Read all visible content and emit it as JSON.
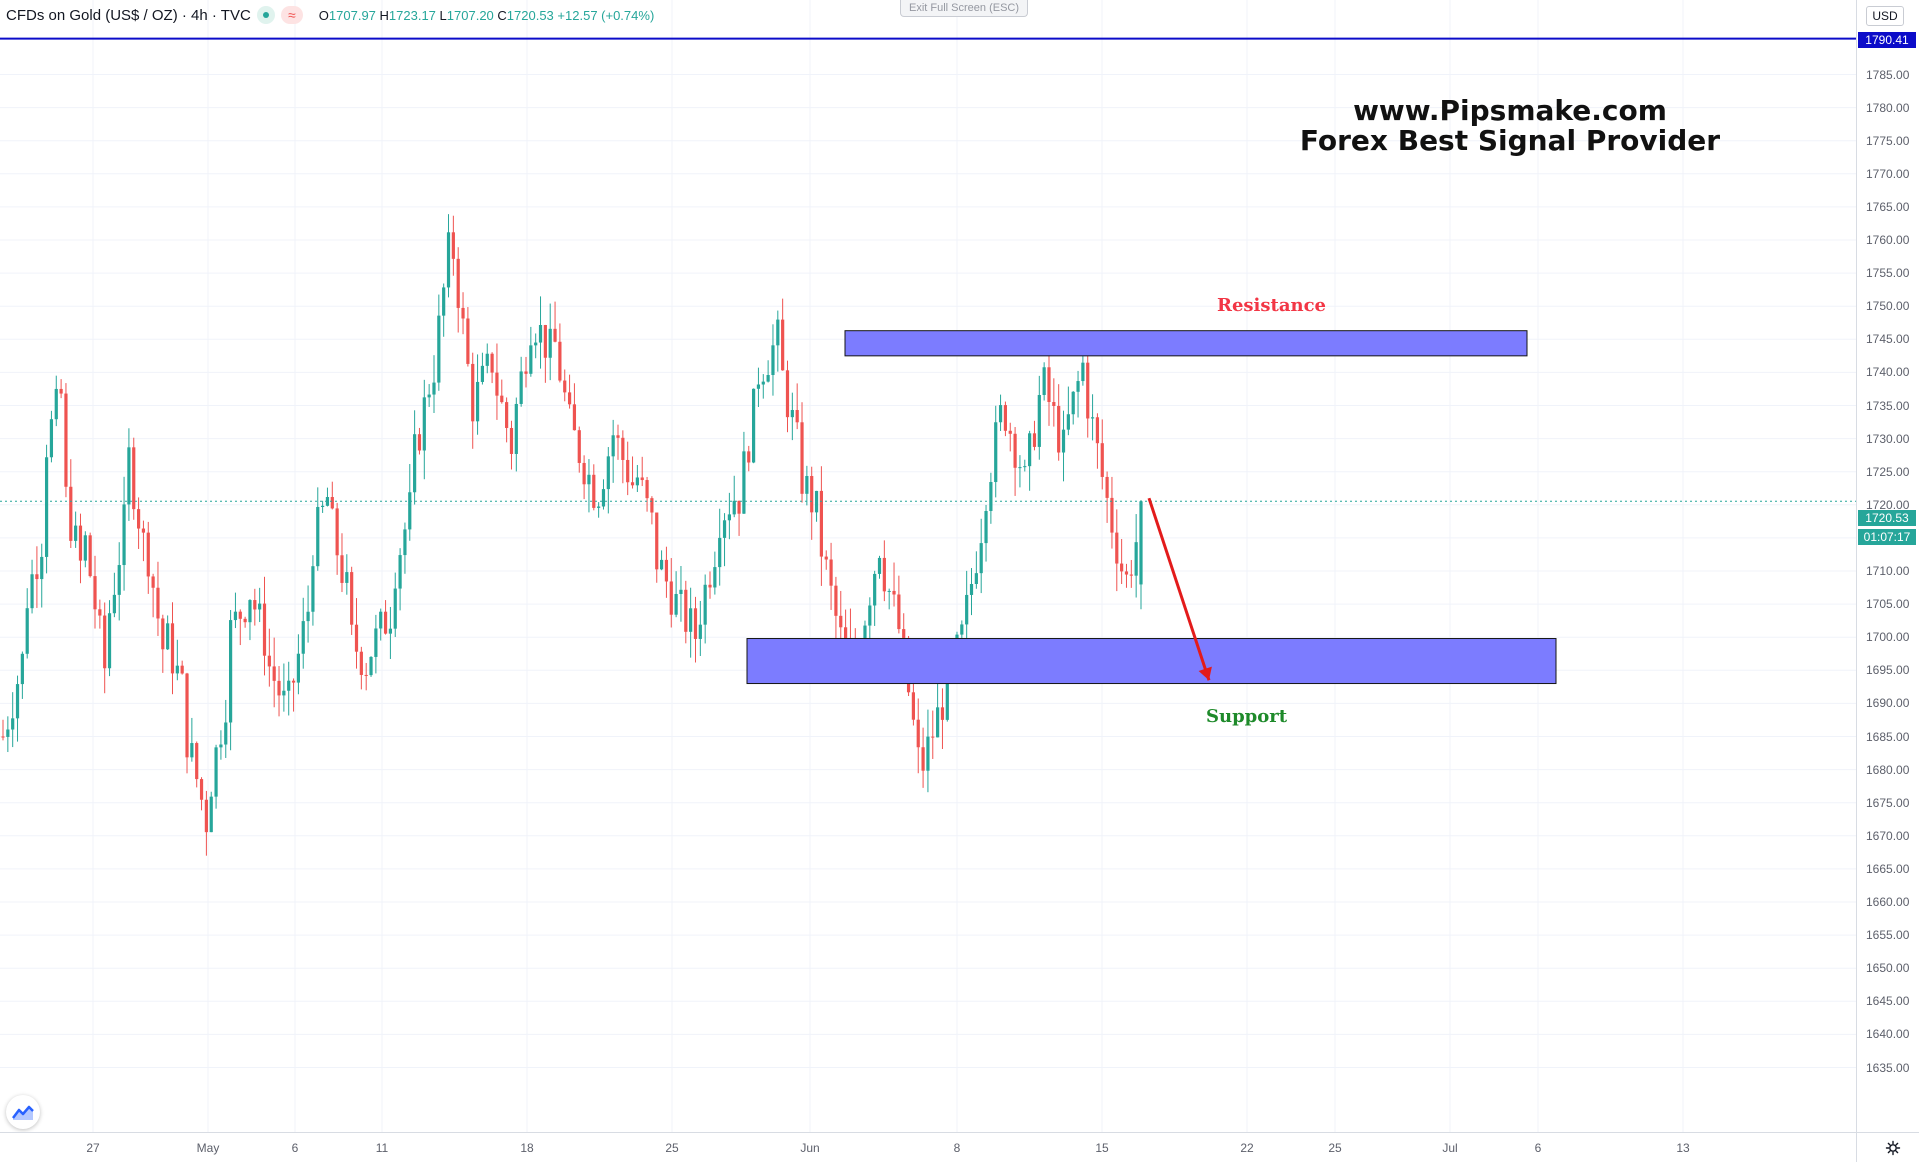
{
  "legend": {
    "symbol": "CFDs on Gold (US$ / OZ) · 4h · TVC",
    "open_label": "O",
    "open": "1707.97",
    "high_label": "H",
    "high": "1723.17",
    "low_label": "L",
    "low": "1707.20",
    "close_label": "C",
    "close": "1720.53",
    "change": "+12.57 (+0.74%)"
  },
  "exit_fullscreen": "Exit Full Screen (ESC)",
  "watermark": {
    "line1": "www.Pipsmake.com",
    "line2": "Forex Best Signal Provider"
  },
  "annotations": {
    "resistance": "Resistance",
    "support": "Support",
    "resistance_color": "#f23645",
    "support_color": "#1e8a2a",
    "zone_fill": "#7c7cff",
    "arrow_color": "#e31b1b"
  },
  "price_axis": {
    "currency": "USD",
    "ticks": [
      "1785.00",
      "1780.00",
      "1775.00",
      "1770.00",
      "1765.00",
      "1760.00",
      "1755.00",
      "1750.00",
      "1745.00",
      "1740.00",
      "1735.00",
      "1730.00",
      "1725.00",
      "1720.00",
      "1715.00",
      "1710.00",
      "1705.00",
      "1700.00",
      "1695.00",
      "1690.00",
      "1685.00",
      "1680.00",
      "1675.00",
      "1670.00",
      "1665.00",
      "1660.00",
      "1655.00",
      "1650.00",
      "1645.00",
      "1640.00",
      "1635.00"
    ],
    "horizontal_line_price": "1790.41",
    "last_price": "1720.53",
    "countdown": "01:07:17",
    "horizontal_line_color": "#0c0cc9",
    "last_price_color": "#26a69a"
  },
  "time_axis": {
    "ticks": [
      "27",
      "May",
      "6",
      "11",
      "18",
      "25",
      "Jun",
      "8",
      "15",
      "22",
      "25",
      "Jul",
      "6",
      "13"
    ]
  },
  "chart_data": {
    "type": "candlestick",
    "interval": "4h",
    "x_labels": [
      "27",
      "May",
      "6",
      "11",
      "18",
      "25",
      "Jun",
      "8",
      "15",
      "22",
      "25",
      "Jul",
      "6",
      "13"
    ],
    "ylim": [
      1631,
      1792
    ],
    "last_close": 1720.53,
    "resistance_zone": [
      1742.5,
      1746.3
    ],
    "support_zone": [
      1693.0,
      1699.8
    ],
    "projection": {
      "from": 1721.0,
      "to": 1693.5
    },
    "swing_points": [
      [
        1685,
        1697
      ],
      [
        1704,
        1716
      ],
      [
        1728,
        1738
      ],
      [
        1722,
        1708
      ],
      [
        1715,
        1695
      ],
      [
        1700,
        1718
      ],
      [
        1730,
        1712
      ],
      [
        1715,
        1695
      ],
      [
        1700,
        1690
      ],
      [
        1685,
        1672
      ],
      [
        1675,
        1692
      ],
      [
        1700,
        1706
      ],
      [
        1708,
        1698
      ],
      [
        1696,
        1688
      ],
      [
        1690,
        1705
      ],
      [
        1712,
        1722
      ],
      [
        1718,
        1705
      ],
      [
        1700,
        1695
      ],
      [
        1698,
        1704
      ],
      [
        1708,
        1720
      ],
      [
        1725,
        1740
      ],
      [
        1738,
        1762
      ],
      [
        1760,
        1735
      ],
      [
        1735,
        1742
      ],
      [
        1740,
        1728
      ],
      [
        1732,
        1750
      ],
      [
        1748,
        1742
      ],
      [
        1745,
        1728
      ],
      [
        1730,
        1722
      ],
      [
        1720,
        1732
      ],
      [
        1730,
        1722
      ],
      [
        1725,
        1715
      ],
      [
        1712,
        1705
      ],
      [
        1705,
        1700
      ],
      [
        1702,
        1715
      ],
      [
        1718,
        1722
      ],
      [
        1720,
        1738
      ],
      [
        1740,
        1745
      ],
      [
        1742,
        1728
      ],
      [
        1725,
        1718
      ],
      [
        1715,
        1700
      ],
      [
        1700,
        1695
      ],
      [
        1700,
        1715
      ],
      [
        1712,
        1700
      ],
      [
        1700,
        1678
      ],
      [
        1680,
        1690
      ],
      [
        1690,
        1700
      ],
      [
        1700,
        1718
      ],
      [
        1720,
        1735
      ],
      [
        1735,
        1725
      ],
      [
        1722,
        1740
      ],
      [
        1738,
        1728
      ],
      [
        1730,
        1742
      ],
      [
        1738,
        1722
      ],
      [
        1722,
        1708
      ],
      [
        1707.97,
        1720.53
      ]
    ]
  }
}
